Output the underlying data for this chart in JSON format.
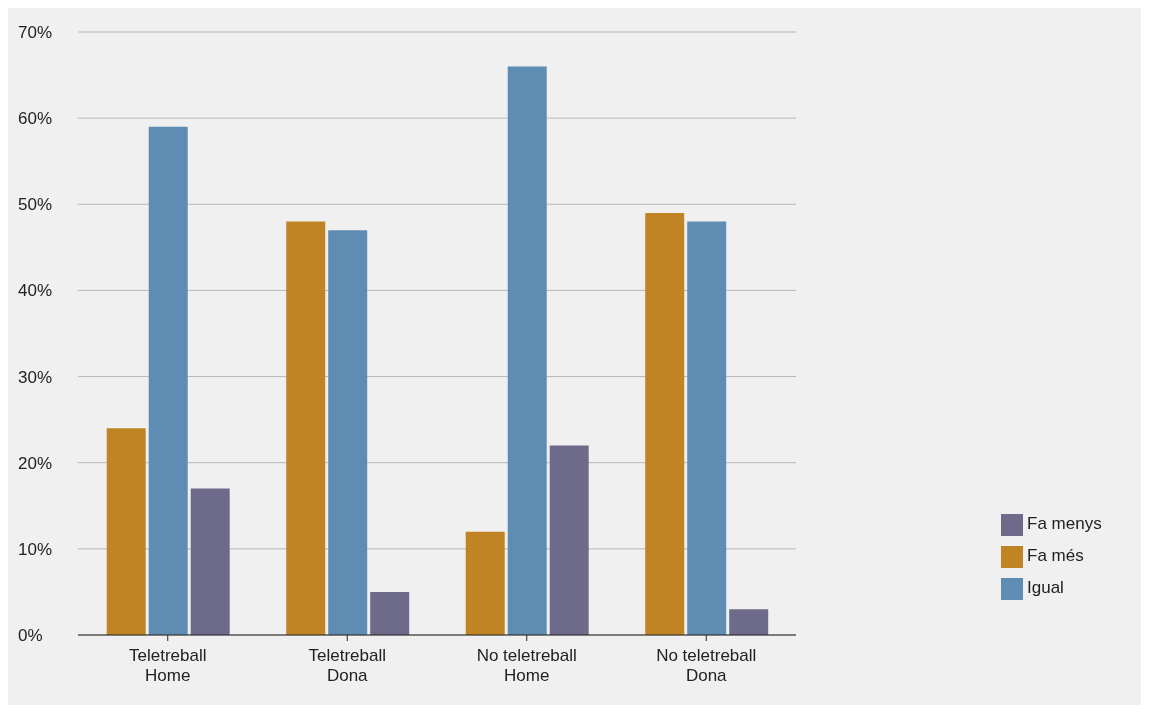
{
  "chart_data": {
    "type": "bar",
    "categories": [
      "Teletreball\nHome",
      "Teletreball\nDona",
      "No teletreball\nHome",
      "No teletreball\nDona"
    ],
    "series": [
      {
        "name": "Fa més",
        "color": "#c08424",
        "values": [
          24,
          48,
          12,
          49
        ]
      },
      {
        "name": "Igual",
        "color": "#5f8cb2",
        "values": [
          59,
          47,
          66,
          48
        ]
      },
      {
        "name": "Fa menys",
        "color": "#6e6b8a",
        "values": [
          17,
          5,
          22,
          3
        ]
      }
    ],
    "ylim": [
      0,
      70
    ],
    "yticks": [
      {
        "value": 0,
        "label": "0%"
      },
      {
        "value": 10,
        "label": "10%"
      },
      {
        "value": 20,
        "label": "20%"
      },
      {
        "value": 30,
        "label": "30%"
      },
      {
        "value": 40,
        "label": "40%"
      },
      {
        "value": 50,
        "label": "50%"
      },
      {
        "value": 60,
        "label": "60%"
      },
      {
        "value": 70,
        "label": "70%"
      }
    ],
    "grid": "y",
    "legend": "right"
  }
}
